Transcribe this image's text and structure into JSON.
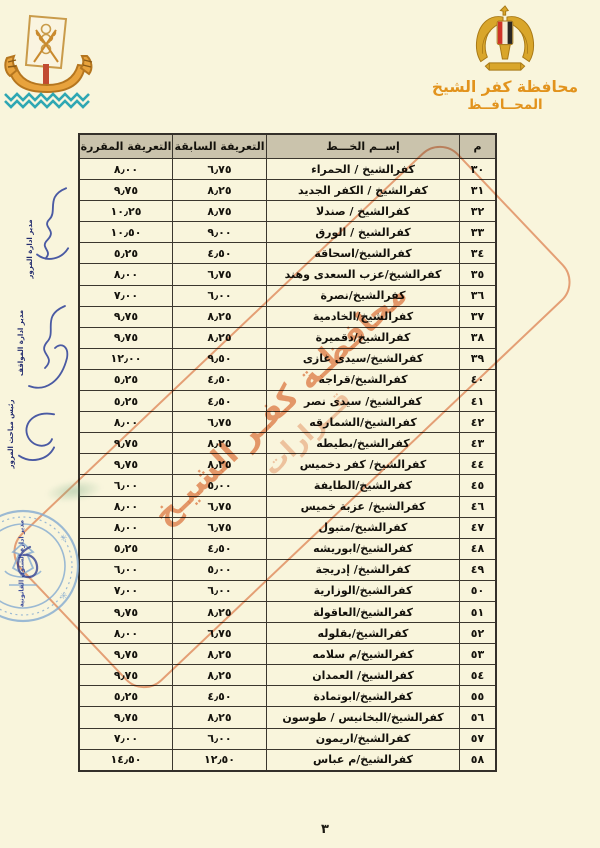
{
  "letterhead": {
    "title": "محافظة كفر الشيخ",
    "subtitle": "المحــافــظ"
  },
  "table": {
    "headers": {
      "no": "م",
      "line": "إســم الخـــط",
      "previous": "التعريفة السابقة",
      "approved": "التعريفة المقررة"
    },
    "rows": [
      {
        "no": "٣٠",
        "line": "كفرالشيخ / الحمراء",
        "previous": "٦٫٧٥",
        "approved": "٨٫٠٠"
      },
      {
        "no": "٣١",
        "line": "كفرالشيخ / الكفر الجديد",
        "previous": "٨٫٢٥",
        "approved": "٩٫٧٥"
      },
      {
        "no": "٣٢",
        "line": "كفرالشيخ / صندلا",
        "previous": "٨٫٧٥",
        "approved": "١٠٫٢٥"
      },
      {
        "no": "٣٣",
        "line": "كفرالشيخ / الورق",
        "previous": "٩٫٠٠",
        "approved": "١٠٫٥٠"
      },
      {
        "no": "٣٤",
        "line": "كفرالشيخ/اسحاقة",
        "previous": "٤٫٥٠",
        "approved": "٥٫٢٥"
      },
      {
        "no": "٣٥",
        "line": "كفرالشيخ/عزب السعدى وهند",
        "previous": "٦٫٧٥",
        "approved": "٨٫٠٠"
      },
      {
        "no": "٣٦",
        "line": "كفرالشيخ/نصرة",
        "previous": "٦٫٠٠",
        "approved": "٧٫٠٠"
      },
      {
        "no": "٣٧",
        "line": "كفرالشيخ/الخادمية",
        "previous": "٨٫٢٥",
        "approved": "٩٫٧٥"
      },
      {
        "no": "٣٨",
        "line": "كفرالشيخ/دقميرة",
        "previous": "٨٫٢٥",
        "approved": "٩٫٧٥"
      },
      {
        "no": "٣٩",
        "line": "كفرالشيخ/سيدى غازى",
        "previous": "٩٫٥٠",
        "approved": "١٢٫٠٠"
      },
      {
        "no": "٤٠",
        "line": "كفرالشيخ/قراجه",
        "previous": "٤٫٥٠",
        "approved": "٥٫٢٥"
      },
      {
        "no": "٤١",
        "line": "كفرالشيخ/ سيدى نصر",
        "previous": "٤٫٥٠",
        "approved": "٥٫٢٥"
      },
      {
        "no": "٤٢",
        "line": "كفرالشيخ/الشمارقه",
        "previous": "٦٫٧٥",
        "approved": "٨٫٠٠"
      },
      {
        "no": "٤٣",
        "line": "كفرالشيخ/بطيطه",
        "previous": "٨٫٢٥",
        "approved": "٩٫٧٥"
      },
      {
        "no": "٤٤",
        "line": "كفرالشيخ/ كفر دخميس",
        "previous": "٨٫٢٥",
        "approved": "٩٫٧٥"
      },
      {
        "no": "٤٥",
        "line": "كفرالشيخ/الطايفة",
        "previous": "٥٫٠٠",
        "approved": "٦٫٠٠"
      },
      {
        "no": "٤٦",
        "line": "كفرالشيخ/ عزبة خميس",
        "previous": "٦٫٧٥",
        "approved": "٨٫٠٠"
      },
      {
        "no": "٤٧",
        "line": "كفرالشيخ/متبول",
        "previous": "٦٫٧٥",
        "approved": "٨٫٠٠"
      },
      {
        "no": "٤٨",
        "line": "كفرالشيخ/ابوريشه",
        "previous": "٤٫٥٠",
        "approved": "٥٫٢٥"
      },
      {
        "no": "٤٩",
        "line": "كفرالشيخ/ إدريجة",
        "previous": "٥٫٠٠",
        "approved": "٦٫٠٠"
      },
      {
        "no": "٥٠",
        "line": "كفرالشيخ/الوزارية",
        "previous": "٦٫٠٠",
        "approved": "٧٫٠٠"
      },
      {
        "no": "٥١",
        "line": "كفرالشيخ/العاقولة",
        "previous": "٨٫٢٥",
        "approved": "٩٫٧٥"
      },
      {
        "no": "٥٢",
        "line": "كفرالشيخ/بقلوله",
        "previous": "٦٫٧٥",
        "approved": "٨٫٠٠"
      },
      {
        "no": "٥٣",
        "line": "كفرالشيخ/م سلامه",
        "previous": "٨٫٢٥",
        "approved": "٩٫٧٥"
      },
      {
        "no": "٥٤",
        "line": "كفرالشيخ/ العمدان",
        "previous": "٨٫٢٥",
        "approved": "٩٫٧٥"
      },
      {
        "no": "٥٥",
        "line": "كفرالشيخ/ابوتمادة",
        "previous": "٤٫٥٠",
        "approved": "٥٫٢٥"
      },
      {
        "no": "٥٦",
        "line": "كفرالشيخ/البخانيس / طوسون",
        "previous": "٨٫٢٥",
        "approved": "٩٫٧٥"
      },
      {
        "no": "٥٧",
        "line": "كفرالشيخ/اريمون",
        "previous": "٦٫٠٠",
        "approved": "٧٫٠٠"
      },
      {
        "no": "٥٨",
        "line": "كفرالشيخ/م عباس",
        "previous": "١٢٫٥٠",
        "approved": "١٤٫٥٠"
      }
    ]
  },
  "diagonal_stamp": {
    "line1": "محافظـة كفـر الشيـخ",
    "line2": "قــرارات"
  },
  "margin_signatures": {
    "items": [
      {
        "label": "مدير ادارة المرور"
      },
      {
        "label": "مدير ادارة المواقف"
      },
      {
        "label": "رئيس مباحث المرور"
      }
    ]
  },
  "round_stamp": {
    "label": "مدير ادارة الشئون القانونية"
  },
  "page": {
    "number": "٣"
  },
  "colors": {
    "paper": "#f9f5dc",
    "table_header_bg": "#cac3ac",
    "ink": "#14120c",
    "stamp_orange": "#de7646",
    "signature_blue": "#2b3e99",
    "round_stamp_blue": "#84abd1",
    "emblem_gold": "#d9a62b",
    "logo_teal": "#2fa7b3"
  }
}
